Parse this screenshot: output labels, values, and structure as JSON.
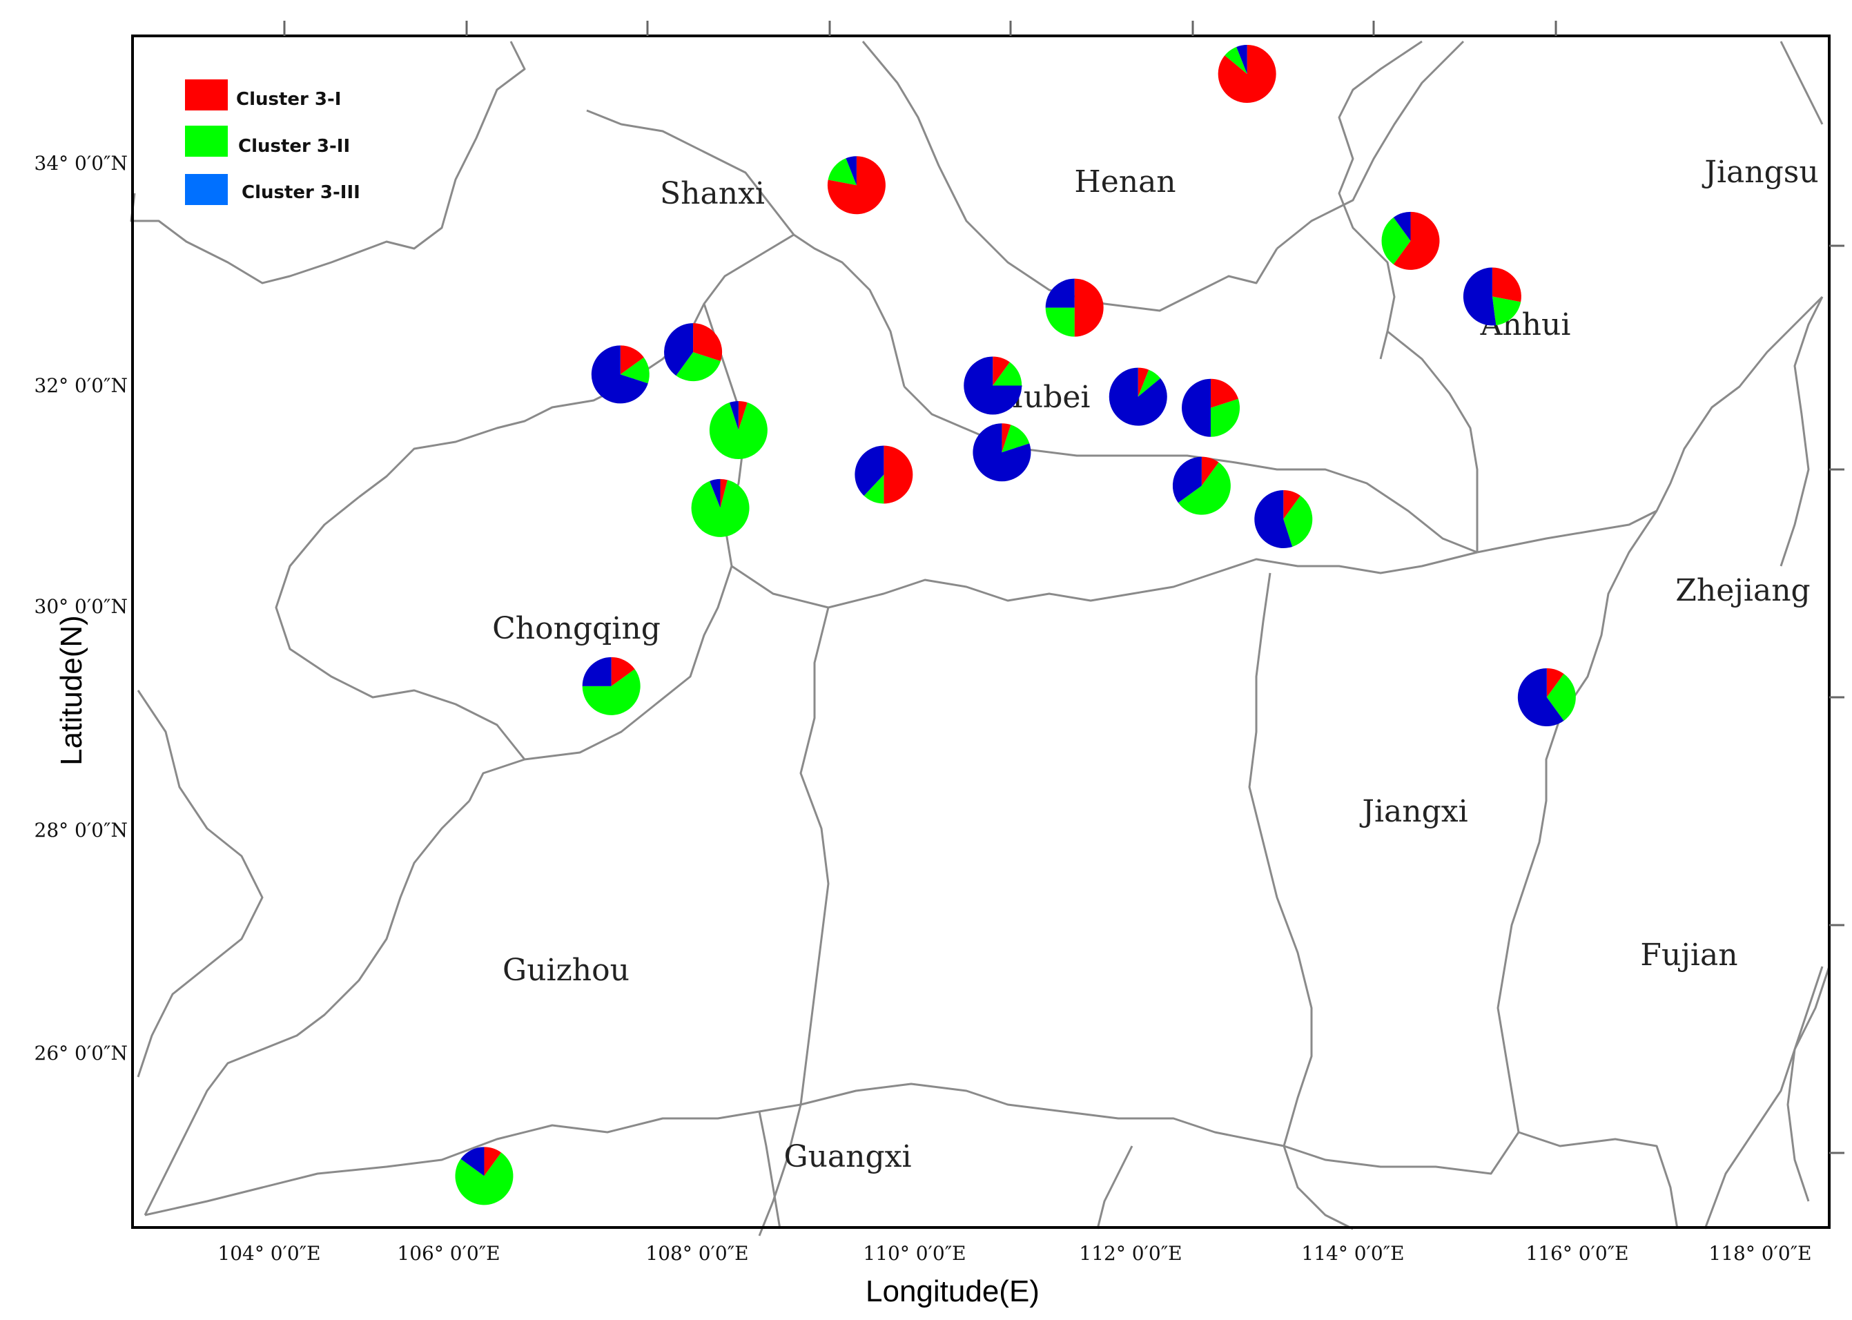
{
  "legend": [
    {
      "label": "Cluster 3-I",
      "color": "#ff0000"
    },
    {
      "label": "Cluster 3-II",
      "color": "#00ff00"
    },
    {
      "label": "Cluster 3-III",
      "color": "#0070ff"
    }
  ],
  "pie_colors": {
    "cluster_i": "#ff0000",
    "cluster_ii": "#00ff00",
    "cluster_iii": "#0000cc"
  },
  "axes": {
    "x_title": "Longitude(E)",
    "y_title": "Latitude(N)",
    "x_ticks": [
      "104° 0′0″E",
      "106° 0′0″E",
      "108° 0′0″E",
      "110° 0′0″E",
      "112° 0′0″E",
      "114° 0′0″E",
      "116° 0′0″E",
      "118° 0′0″E"
    ],
    "y_ticks": [
      "34° 0′0″N",
      "32° 0′0″N",
      "30° 0′0″N",
      "28° 0′0″N",
      "26° 0′0″N"
    ]
  },
  "provinces": [
    "Shanxi",
    "Henan",
    "Jiangsu",
    "Anhui",
    "Hubei",
    "Chongqing",
    "Zhejiang",
    "Jiangxi",
    "Guizhou",
    "Fujian",
    "Guangxi"
  ],
  "sites": [
    {
      "lon": 110.3,
      "lat": 33.8,
      "cluster_i": 0.78,
      "cluster_ii": 0.16,
      "cluster_iii": 0.06
    },
    {
      "lon": 114.6,
      "lat": 34.8,
      "cluster_i": 0.86,
      "cluster_ii": 0.08,
      "cluster_iii": 0.06
    },
    {
      "lon": 116.4,
      "lat": 33.3,
      "cluster_i": 0.6,
      "cluster_ii": 0.3,
      "cluster_iii": 0.1
    },
    {
      "lon": 117.3,
      "lat": 32.8,
      "cluster_i": 0.28,
      "cluster_ii": 0.2,
      "cluster_iii": 0.52
    },
    {
      "lon": 112.7,
      "lat": 32.7,
      "cluster_i": 0.5,
      "cluster_ii": 0.25,
      "cluster_iii": 0.25
    },
    {
      "lon": 108.5,
      "lat": 32.3,
      "cluster_i": 0.3,
      "cluster_ii": 0.3,
      "cluster_iii": 0.4
    },
    {
      "lon": 107.7,
      "lat": 32.1,
      "cluster_i": 0.15,
      "cluster_ii": 0.15,
      "cluster_iii": 0.7
    },
    {
      "lon": 111.8,
      "lat": 32.0,
      "cluster_i": 0.1,
      "cluster_ii": 0.15,
      "cluster_iii": 0.75
    },
    {
      "lon": 113.4,
      "lat": 31.9,
      "cluster_i": 0.06,
      "cluster_ii": 0.08,
      "cluster_iii": 0.86
    },
    {
      "lon": 114.2,
      "lat": 31.8,
      "cluster_i": 0.2,
      "cluster_ii": 0.3,
      "cluster_iii": 0.5
    },
    {
      "lon": 109.0,
      "lat": 31.6,
      "cluster_i": 0.05,
      "cluster_ii": 0.9,
      "cluster_iii": 0.05
    },
    {
      "lon": 111.9,
      "lat": 31.4,
      "cluster_i": 0.05,
      "cluster_ii": 0.15,
      "cluster_iii": 0.8
    },
    {
      "lon": 110.6,
      "lat": 31.2,
      "cluster_i": 0.5,
      "cluster_ii": 0.12,
      "cluster_iii": 0.38
    },
    {
      "lon": 114.1,
      "lat": 31.1,
      "cluster_i": 0.1,
      "cluster_ii": 0.55,
      "cluster_iii": 0.35
    },
    {
      "lon": 115.0,
      "lat": 30.8,
      "cluster_i": 0.1,
      "cluster_ii": 0.35,
      "cluster_iii": 0.55
    },
    {
      "lon": 108.8,
      "lat": 30.9,
      "cluster_i": 0.04,
      "cluster_ii": 0.9,
      "cluster_iii": 0.06
    },
    {
      "lon": 107.6,
      "lat": 29.3,
      "cluster_i": 0.15,
      "cluster_ii": 0.6,
      "cluster_iii": 0.25
    },
    {
      "lon": 117.9,
      "lat": 29.2,
      "cluster_i": 0.1,
      "cluster_ii": 0.3,
      "cluster_iii": 0.6
    },
    {
      "lon": 106.2,
      "lat": 24.9,
      "cluster_i": 0.1,
      "cluster_ii": 0.75,
      "cluster_iii": 0.15
    }
  ]
}
